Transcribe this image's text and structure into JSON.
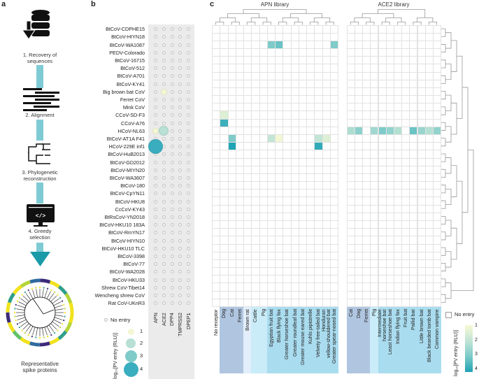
{
  "panel_labels": {
    "a": "a",
    "b": "b",
    "c": "c"
  },
  "workflow": {
    "steps": [
      "1. Recovery of\nsequences",
      "2. Alignment",
      "3. Phylogenetic\nreconstruction",
      "4. Greedy\nselection"
    ],
    "result": "Representative\nspike proteins",
    "icons": [
      "database-download-icon",
      "sequence-alignment-icon",
      "phylogenetic-tree-icon",
      "code-monitor-icon",
      "circular-tree-icon"
    ],
    "connector_color": "#7ecbd4",
    "arrow_color": "#1a9aa8",
    "ring_colors": [
      "#f1e21c",
      "#b5d43a",
      "#2f9f8a",
      "#2f6aa0",
      "#3e2b7a",
      "#63c26a"
    ]
  },
  "chart_data": [
    {
      "type": "scatter",
      "panel": "b",
      "rows": [
        "BtCoV-CDPHE15",
        "BtCoV-HIYN18",
        "BtCoV-WA1087",
        "PEDV-Colorado",
        "BtCoV-16715",
        "BtCoV-512",
        "BtCoV-A701",
        "BtCoV-KY41",
        "Big brown bat CoV",
        "Ferret CoV",
        "Mink CoV",
        "CCoV-SD-F3",
        "CCoV-A76",
        "HCoV-NL63",
        "BtCoV-AT1A F41",
        "HCoV-229E inf1",
        "BtCoV-HuB2013",
        "BtCoV-GD2012",
        "BtCoV-MIYN20",
        "BtCoV-WA3607",
        "BtCoV-180",
        "BtCoV-CpYN11",
        "BtCoV-HKU8",
        "CcCoV-KY43",
        "BtRsCoV-YN2018",
        "BtCoV-HKU10 183A",
        "BtCoV-RmYN17",
        "BtCoV-HIYN10",
        "BtCoV-HKU10 TLC",
        "BtCoV-3398",
        "BtCoV-77",
        "BtCoV-WA2028",
        "BtCoV-HKU33",
        "Shrew CoV-Tibet14",
        "Wencheng shrew CoV",
        "Rat CoV-UKnR3"
      ],
      "columns": [
        "APN",
        "ACE2",
        "DPP4",
        "TMPRSS2",
        "DPEP1"
      ],
      "points": [
        {
          "row": "Big brown bat CoV",
          "column": "ACE2",
          "value": 1
        },
        {
          "row": "HCoV-NL63",
          "column": "APN",
          "value": 1
        },
        {
          "row": "HCoV-NL63",
          "column": "ACE2",
          "value": 2.3
        },
        {
          "row": "HCoV-229E inf1",
          "column": "APN",
          "value": 4
        }
      ],
      "legend": {
        "no_entry": "No entry",
        "title": "log₁₀[PV entry (RLU)]",
        "sizes": [
          "1",
          "2",
          "3",
          "4"
        ]
      }
    },
    {
      "type": "heatmap",
      "panel": "c",
      "libraries": [
        {
          "title": "APN library",
          "columns": [
            "No receptor",
            "Dog",
            "Cat",
            "Ferret",
            "Brown rat",
            "Cattle",
            "Pig",
            "Egyptian fruit bat",
            "Black flying fox",
            "Greater horseshoe bat",
            "Greater roundleaf bat",
            "Greater mouse eared bat",
            "Kuhls pipistrelle",
            "Velvety free-tailed bat",
            "Honduran\nyellow-shouldered bat",
            "Greater spear-nosed bat"
          ],
          "column_groups": [
            "none",
            "carnivore",
            "carnivore",
            "carnivore",
            "rodent",
            "ungulate",
            "ungulate",
            "bat",
            "bat",
            "bat",
            "bat",
            "bat",
            "bat",
            "bat",
            "bat",
            "bat"
          ],
          "cells": [
            {
              "row": 2,
              "col": 7,
              "value": 3.0
            },
            {
              "row": 2,
              "col": 8,
              "value": 3.2
            },
            {
              "row": 2,
              "col": 15,
              "value": 3.0
            },
            {
              "row": 11,
              "col": 1,
              "value": 1.5
            },
            {
              "row": 12,
              "col": 1,
              "value": 3.7
            },
            {
              "row": 14,
              "col": 2,
              "value": 3.0
            },
            {
              "row": 14,
              "col": 7,
              "value": 2.0
            },
            {
              "row": 14,
              "col": 8,
              "value": 1.1
            },
            {
              "row": 14,
              "col": 13,
              "value": 2.0
            },
            {
              "row": 14,
              "col": 14,
              "value": 1.5
            },
            {
              "row": 15,
              "col": 2,
              "value": 4.0
            },
            {
              "row": 15,
              "col": 13,
              "value": 3.8
            }
          ]
        },
        {
          "title": "ACE2 library",
          "columns": [
            "Cat",
            "Dog",
            "Ferret",
            "Pig",
            "Intermediate\nhorseshoe bat",
            "Least horseshoe bat",
            "Indian flying fox",
            "Fruit bat",
            "Pallid bat",
            "Little brown bat",
            "Black bearded tomb bat",
            "Common vampire"
          ],
          "column_groups": [
            "carnivore",
            "carnivore",
            "carnivore",
            "ungulate",
            "bat",
            "bat",
            "bat",
            "bat",
            "bat",
            "bat",
            "bat",
            "bat"
          ],
          "cells": [
            {
              "row": 13,
              "col": 0,
              "value": 2.3
            },
            {
              "row": 13,
              "col": 1,
              "value": 2.8
            },
            {
              "row": 13,
              "col": 3,
              "value": 2.5
            },
            {
              "row": 13,
              "col": 4,
              "value": 3.0
            },
            {
              "row": 13,
              "col": 5,
              "value": 2.7
            },
            {
              "row": 13,
              "col": 6,
              "value": 2.2
            },
            {
              "row": 13,
              "col": 8,
              "value": 3.2
            },
            {
              "row": 13,
              "col": 9,
              "value": 2.6
            },
            {
              "row": 13,
              "col": 10,
              "value": 2.2
            },
            {
              "row": 13,
              "col": 11,
              "value": 2.7
            }
          ]
        }
      ],
      "row_count": 36,
      "group_colors": {
        "none": "#ffffff",
        "carnivore": "#b0c6e0",
        "rodent": "#e2eefa",
        "ungulate": "#c9ecf8",
        "bat": "#aadcef"
      },
      "color_scale": {
        "1": "#f7f9d4",
        "2": "#c2e5d6",
        "3": "#7ecbc9",
        "4": "#1fa3b5"
      },
      "legend": {
        "no_entry": "No entry",
        "title": "log₁₀[PV entry (RLU)]",
        "ticks": [
          "1",
          "2",
          "3",
          "4"
        ]
      }
    }
  ]
}
